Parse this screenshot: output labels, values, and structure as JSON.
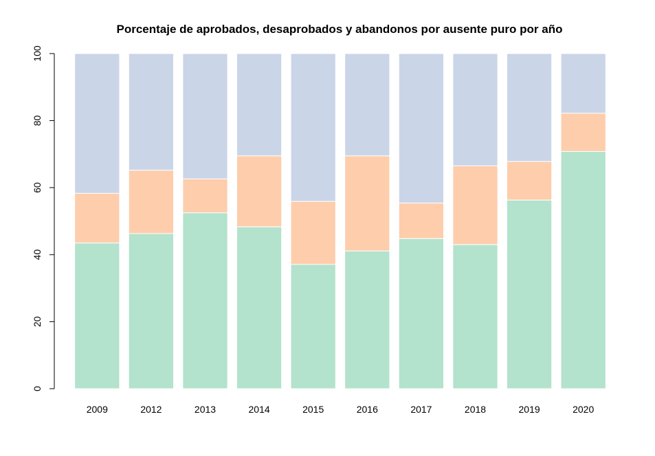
{
  "chart_data": {
    "type": "bar",
    "stacked": true,
    "title": "Porcentaje de aprobados, desaprobados y abandonos por ausente puro por año",
    "xlabel": "",
    "ylabel": "",
    "categories": [
      "2009",
      "2012",
      "2013",
      "2014",
      "2015",
      "2016",
      "2017",
      "2018",
      "2019",
      "2020"
    ],
    "series": [
      {
        "values": [
          43.5,
          46.3,
          52.5,
          48.3,
          37.1,
          41.1,
          44.8,
          43.0,
          56.3,
          70.8
        ],
        "color": "#b3e2cd"
      },
      {
        "values": [
          14.8,
          18.9,
          10.1,
          21.2,
          18.8,
          28.4,
          10.6,
          23.5,
          11.5,
          11.4
        ],
        "color": "#fdcdac"
      },
      {
        "values": [
          41.7,
          34.8,
          37.4,
          30.5,
          44.1,
          30.5,
          44.6,
          33.5,
          32.2,
          17.8
        ],
        "color": "#cbd5e8"
      }
    ],
    "ylim": [
      0,
      100
    ],
    "yticks": [
      "0",
      "20",
      "40",
      "60",
      "80",
      "100"
    ],
    "grid": false,
    "legend": "none"
  }
}
